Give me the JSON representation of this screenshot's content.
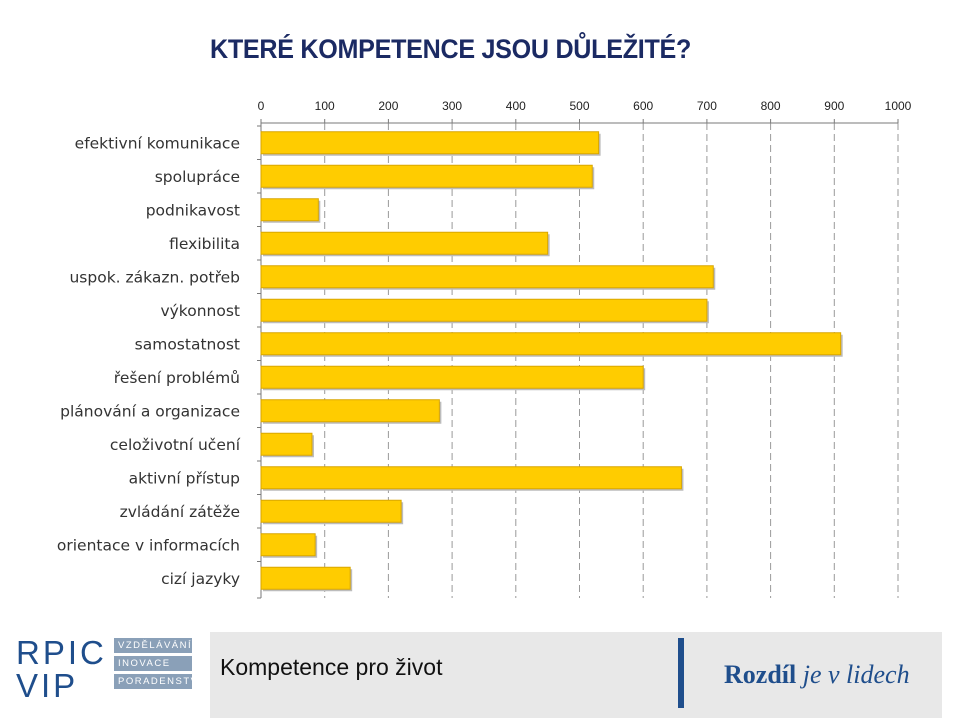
{
  "title": "KTERÉ KOMPETENCE JSOU DŮLEŽITÉ?",
  "chart_data": {
    "type": "bar",
    "orientation": "horizontal",
    "categories": [
      "efektivní komunikace",
      "spolupráce",
      "podnikavost",
      "flexibilita",
      "uspok. zákazn. potřeb",
      "výkonnost",
      "samostatnost",
      "řešení problémů",
      "plánování a organizace",
      "celoživotní učení",
      "aktivní přístup",
      "zvládání zátěže",
      "orientace v informacích",
      "cizí jazyky"
    ],
    "values": [
      530,
      520,
      90,
      450,
      710,
      700,
      910,
      600,
      280,
      80,
      660,
      220,
      85,
      140
    ],
    "xlim": [
      0,
      1000
    ],
    "ticks": [
      "0",
      "100",
      "200",
      "300",
      "400",
      "500",
      "600",
      "700",
      "800",
      "900",
      "1000"
    ],
    "tick_values": [
      0,
      100,
      200,
      300,
      400,
      500,
      600,
      700,
      800,
      900,
      1000
    ],
    "axis_position": "top",
    "grid": true,
    "bar_color": "#FFCC00",
    "bar_edge_color": "#D9A600"
  },
  "footer": {
    "logo_word_top": "RPIC",
    "logo_word_bottom": "VIP",
    "logo_tags": [
      "VZDĚLÁVÁNÍ",
      "INOVACE",
      "PORADENSTVÍ"
    ],
    "left_text": "Kompetence pro život",
    "right_text_bold": "Rozdíl",
    "right_text_italic": " je v lidech",
    "brand_color": "#1f4e8c"
  }
}
